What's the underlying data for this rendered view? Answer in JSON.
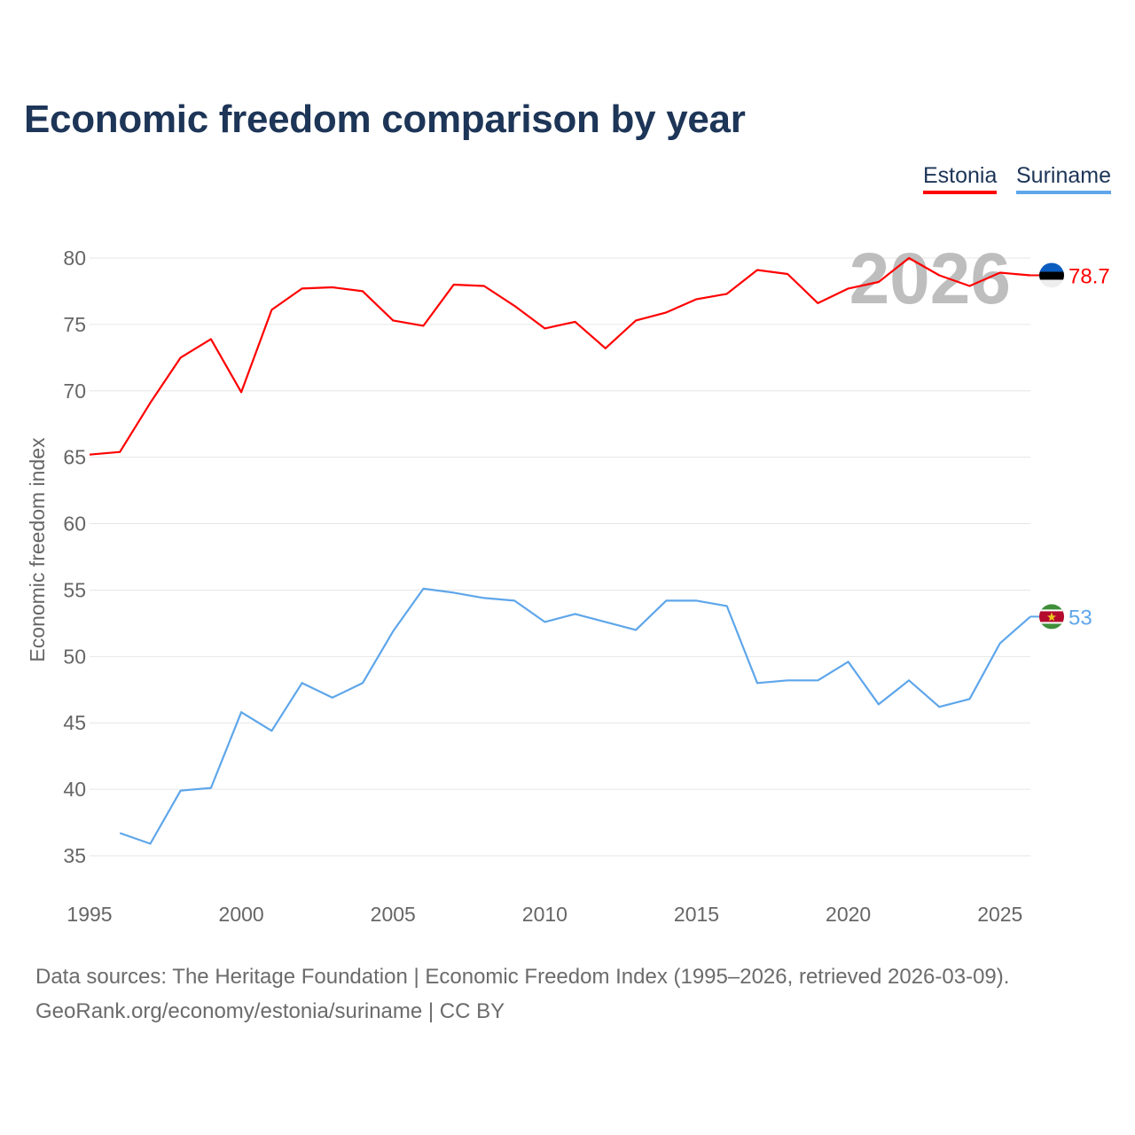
{
  "chart_data": {
    "type": "line",
    "title": "Economic freedom comparison by year",
    "xlabel": "",
    "ylabel": "Economic freedom index",
    "xlim": [
      1995,
      2026
    ],
    "ylim": [
      35,
      80
    ],
    "xticks": [
      1995,
      2000,
      2005,
      2010,
      2015,
      2020,
      2025
    ],
    "yticks": [
      35,
      40,
      45,
      50,
      55,
      60,
      65,
      70,
      75,
      80
    ],
    "grid": true,
    "legend_position": "top-right",
    "watermark_year": "2026",
    "x": [
      1995,
      1996,
      1997,
      1998,
      1999,
      2000,
      2001,
      2002,
      2003,
      2004,
      2005,
      2006,
      2007,
      2008,
      2009,
      2010,
      2011,
      2012,
      2013,
      2014,
      2015,
      2016,
      2017,
      2018,
      2019,
      2020,
      2021,
      2022,
      2023,
      2024,
      2025,
      2026
    ],
    "series": [
      {
        "name": "Estonia",
        "color": "#ff0000",
        "end_label": "78.7",
        "values": [
          65.2,
          65.4,
          69.1,
          72.5,
          73.9,
          69.9,
          76.1,
          77.7,
          77.8,
          77.5,
          75.3,
          74.9,
          78.0,
          77.9,
          76.4,
          74.7,
          75.2,
          73.2,
          75.3,
          75.9,
          76.9,
          77.3,
          79.1,
          78.8,
          76.6,
          77.7,
          78.2,
          80.0,
          78.7,
          77.9,
          78.9,
          78.7
        ]
      },
      {
        "name": "Suriname",
        "color": "#5ea6ea",
        "end_label": "53",
        "values": [
          null,
          36.7,
          35.9,
          39.9,
          40.1,
          45.8,
          44.4,
          48.0,
          46.9,
          48.0,
          51.9,
          55.1,
          54.8,
          54.4,
          54.2,
          52.6,
          53.2,
          52.6,
          52.0,
          54.2,
          54.2,
          53.8,
          48.0,
          48.2,
          48.2,
          49.6,
          46.4,
          48.2,
          46.2,
          46.8,
          51.0,
          53.0
        ]
      }
    ]
  },
  "footer": {
    "source_line": "Data sources: The Heritage Foundation | Economic Freedom Index (1995–2026, retrieved 2026-03-09).",
    "credit_line": "GeoRank.org/economy/estonia/suriname | CC BY"
  }
}
